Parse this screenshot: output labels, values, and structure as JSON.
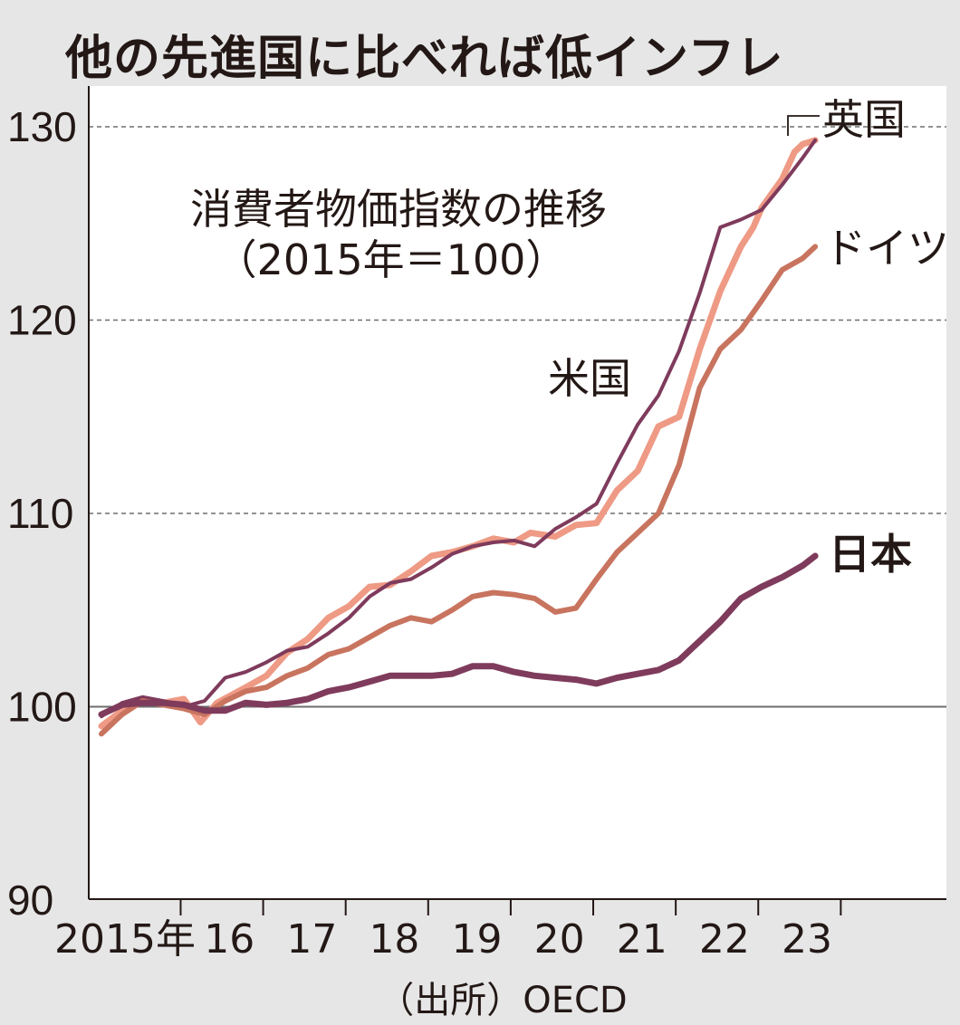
{
  "title": "他の先進国に比べれば低インフレ",
  "source": "（出所）OECD",
  "chart_data": {
    "type": "line",
    "annotation": [
      "消費者物価指数の推移",
      "（2015年＝100）"
    ],
    "x_tick_labels": [
      "2015年",
      "16",
      "17",
      "18",
      "19",
      "20",
      "21",
      "22",
      "23"
    ],
    "ylim": [
      90,
      130
    ],
    "y_ticks": [
      90,
      100,
      110,
      120,
      130
    ],
    "x_range": [
      2015.0,
      2024.0
    ],
    "grid": "dashed horizontal at 110, 120, 130; solid at 100",
    "series": [
      {
        "name": "英国",
        "color": "#ee9a85",
        "width": 7,
        "points": [
          [
            2015.0,
            99.0
          ],
          [
            2015.25,
            99.8
          ],
          [
            2015.5,
            100.4
          ],
          [
            2015.75,
            100.2
          ],
          [
            2016.0,
            100.4
          ],
          [
            2016.2,
            99.2
          ],
          [
            2016.4,
            100.2
          ],
          [
            2016.75,
            101.0
          ],
          [
            2017.0,
            101.6
          ],
          [
            2017.25,
            102.8
          ],
          [
            2017.5,
            103.5
          ],
          [
            2017.75,
            104.6
          ],
          [
            2018.0,
            105.2
          ],
          [
            2018.25,
            106.2
          ],
          [
            2018.5,
            106.3
          ],
          [
            2018.75,
            107.0
          ],
          [
            2019.0,
            107.8
          ],
          [
            2019.25,
            108.0
          ],
          [
            2019.5,
            108.3
          ],
          [
            2019.75,
            108.7
          ],
          [
            2020.0,
            108.5
          ],
          [
            2020.2,
            109.0
          ],
          [
            2020.5,
            108.8
          ],
          [
            2020.75,
            109.4
          ],
          [
            2021.0,
            109.5
          ],
          [
            2021.25,
            111.2
          ],
          [
            2021.5,
            112.2
          ],
          [
            2021.75,
            114.5
          ],
          [
            2022.0,
            115.0
          ],
          [
            2022.25,
            118.5
          ],
          [
            2022.5,
            121.5
          ],
          [
            2022.75,
            123.8
          ],
          [
            2022.9,
            124.8
          ],
          [
            2023.0,
            125.8
          ],
          [
            2023.25,
            127.3
          ],
          [
            2023.4,
            128.7
          ],
          [
            2023.5,
            129.1
          ],
          [
            2023.65,
            129.3
          ]
        ]
      },
      {
        "name": "米国",
        "color": "#7f3b5c",
        "width": 4,
        "points": [
          [
            2015.0,
            99.5
          ],
          [
            2015.25,
            100.2
          ],
          [
            2015.5,
            100.5
          ],
          [
            2015.75,
            100.3
          ],
          [
            2016.0,
            100.0
          ],
          [
            2016.25,
            100.3
          ],
          [
            2016.5,
            101.5
          ],
          [
            2016.75,
            101.8
          ],
          [
            2017.0,
            102.3
          ],
          [
            2017.25,
            102.9
          ],
          [
            2017.5,
            103.1
          ],
          [
            2017.75,
            103.8
          ],
          [
            2018.0,
            104.6
          ],
          [
            2018.25,
            105.7
          ],
          [
            2018.5,
            106.4
          ],
          [
            2018.75,
            106.6
          ],
          [
            2019.0,
            107.2
          ],
          [
            2019.25,
            107.9
          ],
          [
            2019.5,
            108.3
          ],
          [
            2019.75,
            108.5
          ],
          [
            2020.0,
            108.6
          ],
          [
            2020.25,
            108.3
          ],
          [
            2020.5,
            109.2
          ],
          [
            2020.75,
            109.8
          ],
          [
            2021.0,
            110.5
          ],
          [
            2021.25,
            112.6
          ],
          [
            2021.5,
            114.6
          ],
          [
            2021.75,
            116.1
          ],
          [
            2022.0,
            118.4
          ],
          [
            2022.25,
            121.4
          ],
          [
            2022.5,
            124.8
          ],
          [
            2022.75,
            125.2
          ],
          [
            2023.0,
            125.7
          ],
          [
            2023.25,
            127.0
          ],
          [
            2023.5,
            128.4
          ],
          [
            2023.65,
            129.3
          ]
        ]
      },
      {
        "name": "ドイツ",
        "color": "#c8745f",
        "width": 6,
        "points": [
          [
            2015.0,
            98.6
          ],
          [
            2015.25,
            99.6
          ],
          [
            2015.5,
            100.3
          ],
          [
            2015.75,
            100.1
          ],
          [
            2016.0,
            99.9
          ],
          [
            2016.25,
            99.6
          ],
          [
            2016.5,
            100.3
          ],
          [
            2016.75,
            100.8
          ],
          [
            2017.0,
            101.0
          ],
          [
            2017.25,
            101.6
          ],
          [
            2017.5,
            102.0
          ],
          [
            2017.75,
            102.7
          ],
          [
            2018.0,
            103.0
          ],
          [
            2018.25,
            103.6
          ],
          [
            2018.5,
            104.2
          ],
          [
            2018.75,
            104.6
          ],
          [
            2019.0,
            104.4
          ],
          [
            2019.25,
            105.0
          ],
          [
            2019.5,
            105.7
          ],
          [
            2019.75,
            105.9
          ],
          [
            2020.0,
            105.8
          ],
          [
            2020.25,
            105.6
          ],
          [
            2020.5,
            104.9
          ],
          [
            2020.75,
            105.1
          ],
          [
            2021.0,
            106.6
          ],
          [
            2021.25,
            108.0
          ],
          [
            2021.5,
            109.0
          ],
          [
            2021.75,
            110.0
          ],
          [
            2022.0,
            112.5
          ],
          [
            2022.25,
            116.5
          ],
          [
            2022.5,
            118.5
          ],
          [
            2022.75,
            119.5
          ],
          [
            2023.0,
            121.0
          ],
          [
            2023.25,
            122.6
          ],
          [
            2023.5,
            123.2
          ],
          [
            2023.65,
            123.8
          ]
        ]
      },
      {
        "name": "日本",
        "color": "#7f3b5c",
        "width": 7,
        "points": [
          [
            2015.0,
            99.6
          ],
          [
            2015.25,
            100.1
          ],
          [
            2015.5,
            100.2
          ],
          [
            2015.75,
            100.2
          ],
          [
            2016.0,
            100.1
          ],
          [
            2016.25,
            99.8
          ],
          [
            2016.5,
            99.8
          ],
          [
            2016.75,
            100.2
          ],
          [
            2017.0,
            100.1
          ],
          [
            2017.25,
            100.2
          ],
          [
            2017.5,
            100.4
          ],
          [
            2017.75,
            100.8
          ],
          [
            2018.0,
            101.0
          ],
          [
            2018.25,
            101.3
          ],
          [
            2018.5,
            101.6
          ],
          [
            2018.75,
            101.6
          ],
          [
            2019.0,
            101.6
          ],
          [
            2019.25,
            101.7
          ],
          [
            2019.5,
            102.1
          ],
          [
            2019.75,
            102.1
          ],
          [
            2020.0,
            101.8
          ],
          [
            2020.25,
            101.6
          ],
          [
            2020.5,
            101.5
          ],
          [
            2020.75,
            101.4
          ],
          [
            2021.0,
            101.2
          ],
          [
            2021.25,
            101.5
          ],
          [
            2021.5,
            101.7
          ],
          [
            2021.75,
            101.9
          ],
          [
            2022.0,
            102.4
          ],
          [
            2022.25,
            103.4
          ],
          [
            2022.5,
            104.4
          ],
          [
            2022.75,
            105.6
          ],
          [
            2023.0,
            106.2
          ],
          [
            2023.25,
            106.7
          ],
          [
            2023.5,
            107.3
          ],
          [
            2023.65,
            107.8
          ]
        ]
      }
    ]
  }
}
